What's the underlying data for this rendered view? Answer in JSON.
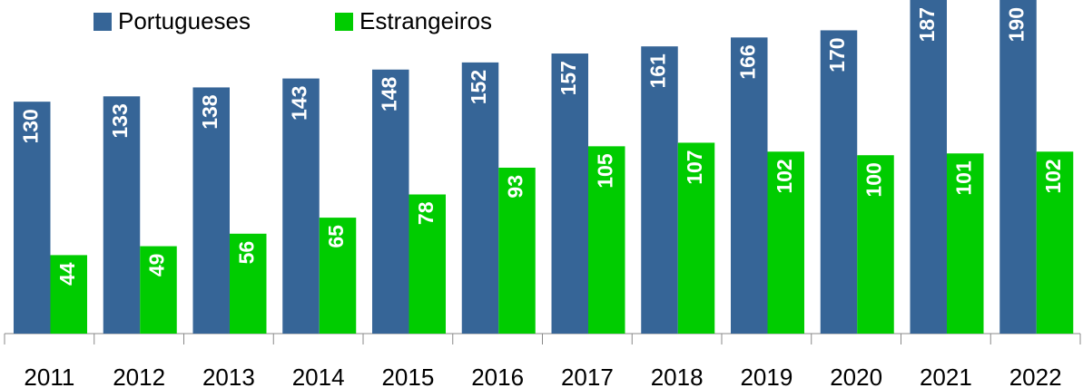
{
  "chart_data": {
    "type": "bar",
    "categories": [
      "2011",
      "2012",
      "2013",
      "2014",
      "2015",
      "2016",
      "2017",
      "2018",
      "2019",
      "2020",
      "2021",
      "2022"
    ],
    "series": [
      {
        "name": "Portugueses",
        "color": "#366597",
        "values": [
          130,
          133,
          138,
          143,
          148,
          152,
          157,
          161,
          166,
          170,
          187,
          190
        ]
      },
      {
        "name": "Estrangeiros",
        "color": "#00cc00",
        "values": [
          44,
          49,
          56,
          65,
          78,
          93,
          105,
          107,
          102,
          100,
          101,
          102
        ]
      }
    ],
    "ylim": [
      0,
      187
    ],
    "legend": "top-left"
  }
}
